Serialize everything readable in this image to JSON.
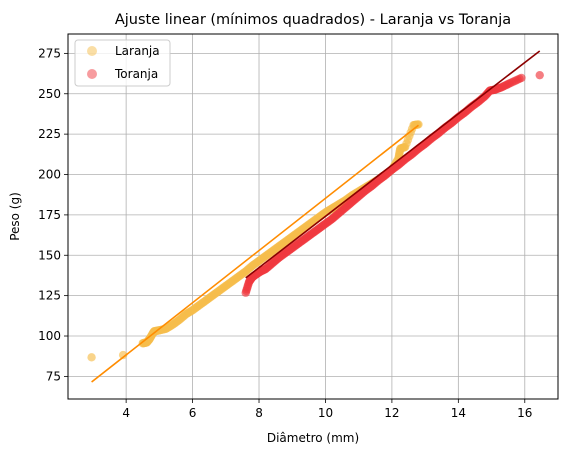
{
  "chart_data": {
    "type": "scatter",
    "title": "Ajuste linear (mínimos quadrados) - Laranja vs Toranja",
    "xlabel": "Diâmetro (mm)",
    "ylabel": "Peso (g)",
    "xlim": [
      2.25,
      17.0
    ],
    "ylim": [
      61,
      287
    ],
    "xticks": [
      4,
      6,
      8,
      10,
      12,
      14,
      16
    ],
    "yticks": [
      75,
      100,
      125,
      150,
      175,
      200,
      225,
      250,
      275
    ],
    "grid": true,
    "legend_position": "top-left",
    "series": [
      {
        "name": "Laranja",
        "color": "#f6bd4c",
        "points": [
          [
            2.96,
            86.8
          ],
          [
            3.91,
            88.2
          ],
          [
            4.5,
            95.5
          ],
          [
            4.62,
            96.0
          ],
          [
            4.7,
            98.0
          ],
          [
            4.8,
            101.5
          ],
          [
            4.85,
            103.0
          ],
          [
            5.0,
            103.5
          ],
          [
            5.2,
            104.5
          ],
          [
            5.4,
            107.0
          ],
          [
            5.6,
            110.0
          ],
          [
            5.8,
            113.5
          ],
          [
            6.0,
            116.0
          ],
          [
            6.2,
            119.0
          ],
          [
            6.4,
            122.0
          ],
          [
            6.6,
            125.0
          ],
          [
            6.8,
            128.0
          ],
          [
            7.0,
            131.0
          ],
          [
            7.2,
            134.0
          ],
          [
            7.4,
            137.0
          ],
          [
            7.6,
            140.0
          ],
          [
            7.8,
            143.5
          ],
          [
            8.0,
            146.5
          ],
          [
            8.2,
            149.5
          ],
          [
            8.4,
            152.5
          ],
          [
            8.6,
            155.5
          ],
          [
            8.8,
            158.5
          ],
          [
            9.0,
            161.5
          ],
          [
            9.2,
            164.5
          ],
          [
            9.4,
            167.5
          ],
          [
            9.6,
            170.5
          ],
          [
            9.8,
            173.5
          ],
          [
            10.0,
            176.5
          ],
          [
            10.2,
            179.0
          ],
          [
            10.4,
            181.5
          ],
          [
            10.6,
            184.0
          ],
          [
            10.8,
            187.0
          ],
          [
            11.0,
            189.5
          ],
          [
            11.2,
            192.0
          ],
          [
            11.4,
            194.5
          ],
          [
            11.6,
            197.0
          ],
          [
            11.8,
            200.0
          ],
          [
            12.0,
            203.0
          ],
          [
            12.2,
            210.0
          ],
          [
            12.25,
            216.0
          ],
          [
            12.4,
            217.0
          ],
          [
            12.65,
            230.5
          ],
          [
            12.8,
            231.0
          ]
        ]
      },
      {
        "name": "Toranja",
        "color": "#f0393f",
        "points": [
          [
            7.6,
            126.8
          ],
          [
            7.7,
            133.5
          ],
          [
            7.8,
            136.5
          ],
          [
            7.9,
            138.0
          ],
          [
            8.05,
            140.0
          ],
          [
            8.2,
            141.5
          ],
          [
            8.4,
            145.0
          ],
          [
            8.6,
            148.5
          ],
          [
            8.8,
            151.5
          ],
          [
            9.0,
            154.5
          ],
          [
            9.2,
            157.5
          ],
          [
            9.4,
            160.5
          ],
          [
            9.6,
            163.5
          ],
          [
            9.8,
            166.5
          ],
          [
            10.0,
            169.5
          ],
          [
            10.2,
            172.5
          ],
          [
            10.4,
            176.0
          ],
          [
            10.6,
            179.5
          ],
          [
            10.8,
            183.0
          ],
          [
            11.0,
            186.5
          ],
          [
            11.2,
            190.0
          ],
          [
            11.4,
            193.0
          ],
          [
            11.6,
            196.5
          ],
          [
            11.8,
            199.5
          ],
          [
            12.0,
            203.0
          ],
          [
            12.2,
            206.0
          ],
          [
            12.4,
            209.5
          ],
          [
            12.6,
            212.5
          ],
          [
            12.8,
            216.0
          ],
          [
            13.0,
            219.0
          ],
          [
            13.2,
            222.5
          ],
          [
            13.4,
            225.5
          ],
          [
            13.6,
            229.0
          ],
          [
            13.8,
            232.0
          ],
          [
            14.0,
            235.5
          ],
          [
            14.2,
            238.5
          ],
          [
            14.4,
            242.0
          ],
          [
            14.6,
            245.0
          ],
          [
            14.8,
            248.5
          ],
          [
            14.95,
            252.0
          ],
          [
            15.1,
            252.5
          ],
          [
            15.3,
            254.0
          ],
          [
            15.55,
            256.5
          ],
          [
            15.9,
            259.8
          ],
          [
            16.45,
            261.5
          ]
        ]
      }
    ],
    "fit_lines": [
      {
        "series": "Laranja",
        "color": "#ff8c00",
        "x": [
          2.96,
          12.8
        ],
        "y": [
          71.5,
          230.5
        ]
      },
      {
        "series": "Toranja",
        "color": "#8b0000",
        "x": [
          7.6,
          16.45
        ],
        "y": [
          136.0,
          276.5
        ]
      }
    ]
  }
}
